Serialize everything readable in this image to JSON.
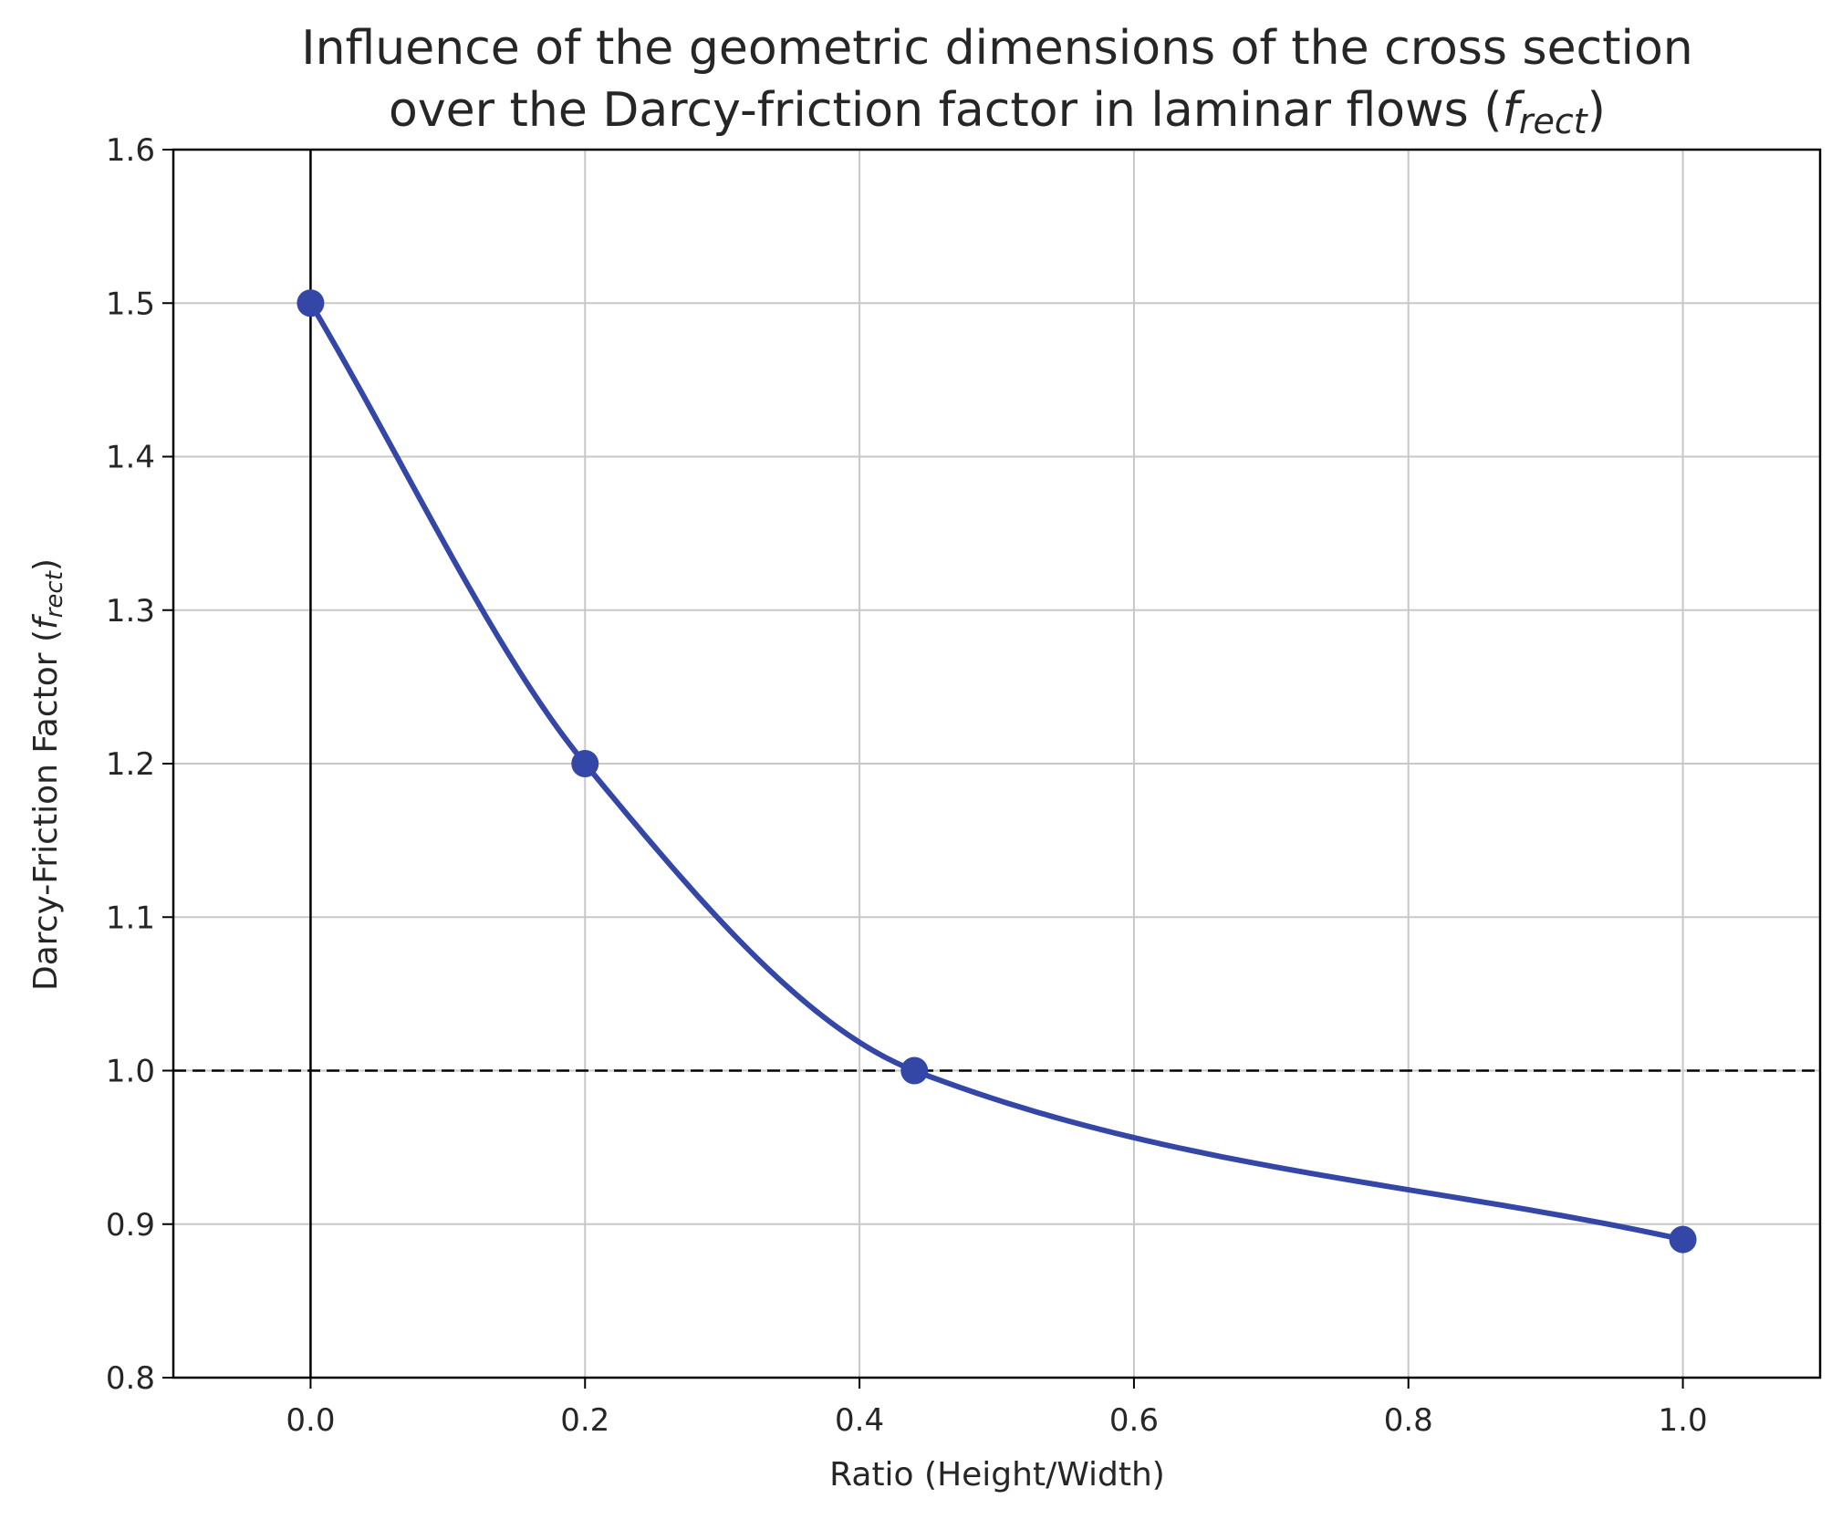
{
  "chart_data": {
    "type": "line",
    "title": {
      "line1": "Influence of the geometric dimensions of the cross section",
      "line2_prefix": "over the Darcy-friction factor in laminar flows (",
      "symbol": "f",
      "subscript": "rect",
      "line2_suffix": ")"
    },
    "xlabel": "Ratio (Height/Width)",
    "ylabel": {
      "prefix": "Darcy-Friction Factor (",
      "symbol": "f",
      "subscript": "rect",
      "suffix": ")"
    },
    "xlim": [
      -0.1,
      1.1
    ],
    "ylim": [
      0.8,
      1.6
    ],
    "xticks": [
      0.0,
      0.2,
      0.4,
      0.6,
      0.8,
      1.0
    ],
    "xtick_labels": [
      "0.0",
      "0.2",
      "0.4",
      "0.6",
      "0.8",
      "1.0"
    ],
    "yticks": [
      0.8,
      0.9,
      1.0,
      1.1,
      1.2,
      1.3,
      1.4,
      1.5,
      1.6
    ],
    "ytick_labels": [
      "0.8",
      "0.9",
      "1.0",
      "1.1",
      "1.2",
      "1.3",
      "1.4",
      "1.5",
      "1.6"
    ],
    "grid": true,
    "series": [
      {
        "x": [
          0.0,
          0.2,
          0.44,
          1.0
        ],
        "y": [
          1.5,
          1.2,
          1.0,
          0.89
        ],
        "color": "#3547a6",
        "markers": true
      }
    ],
    "reference_lines": [
      {
        "orientation": "horizontal",
        "value": 1.0,
        "style": "dashed",
        "color": "#000000"
      },
      {
        "orientation": "vertical",
        "value": 0.0,
        "style": "solid",
        "color": "#000000"
      }
    ]
  }
}
